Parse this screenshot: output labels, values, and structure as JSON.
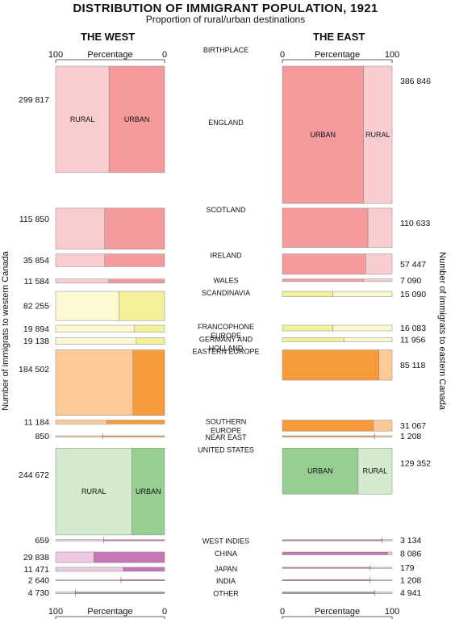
{
  "title": "DISTRIBUTION OF IMMIGRANT POPULATION, 1921",
  "subtitle": "Proportion of rural/urban destinations",
  "west_title": "THE WEST",
  "east_title": "THE EAST",
  "axis_label": "Percentage",
  "west_ticks": [
    "100",
    "0"
  ],
  "east_ticks": [
    "0",
    "100"
  ],
  "west_axis_label": "Number of immigrats to western Canada",
  "east_axis_label": "Number of immigrats to eastern Canada",
  "birthplace_label": "BIRTHPLACE",
  "segment_labels": {
    "rural": "RURAL",
    "urban": "URBAN"
  },
  "colors": {
    "british_urban": "#f4999c",
    "british_rural": "#f9cdd0",
    "scand_urban": "#f5f19a",
    "scand_rural": "#fbf8d2",
    "eastern_urban": "#f79a3c",
    "eastern_rural": "#fdc996",
    "us_urban": "#97cf93",
    "us_rural": "#d3ebcc",
    "asian_urban": "#c874b5",
    "asian_rural": "#ecc8e2",
    "other_urban": "#999999",
    "other_rural": "#d6d6d6"
  },
  "chart_data": {
    "type": "bar",
    "subtype": "variable-width 100% stacked bar (mosaic), two mirrored panels",
    "title": "DISTRIBUTION OF IMMIGRANT POPULATION, 1921",
    "subtitle": "Proportion of rural/urban destinations",
    "xlabel": "Percentage",
    "xlim": [
      0,
      100
    ],
    "west_ylabel": "Number of immigrats to western Canada",
    "east_ylabel": "Number of immigrats to eastern Canada",
    "series": [
      {
        "name": "URBAN"
      },
      {
        "name": "RURAL"
      }
    ],
    "categories": [
      {
        "label": "ENGLAND",
        "group": "british",
        "west": {
          "label": "299 817",
          "count": 299817,
          "urban_pct": 51
        },
        "east": {
          "label": "386 846",
          "count": 386846,
          "urban_pct": 74
        }
      },
      {
        "label": "SCOTLAND",
        "group": "british",
        "west": {
          "label": "115 850",
          "count": 115850,
          "urban_pct": 55
        },
        "east": {
          "label": "110 633",
          "count": 110633,
          "urban_pct": 78
        }
      },
      {
        "label": "IRELAND",
        "group": "british",
        "west": {
          "label": "35 854",
          "count": 35854,
          "urban_pct": 55
        },
        "east": {
          "label": "57 447",
          "count": 57447,
          "urban_pct": 76
        }
      },
      {
        "label": "WALES",
        "group": "british",
        "west": {
          "label": "11 584",
          "count": 11584,
          "urban_pct": 51
        },
        "east": {
          "label": "7 090",
          "count": 7090,
          "urban_pct": 74
        }
      },
      {
        "label": "SCANDINAVIA",
        "group": "scand",
        "west": {
          "label": "82 255",
          "count": 82255,
          "urban_pct": 42
        },
        "east": {
          "label": "15 090",
          "count": 15090,
          "urban_pct": 46
        }
      },
      {
        "label": "FRANCOPHONE EUROPE",
        "lines": [
          "FRANCOPHONE",
          "EUROPE"
        ],
        "group": "scand",
        "west": {
          "label": "19 894",
          "count": 19894,
          "urban_pct": 28
        },
        "east": {
          "label": "16 083",
          "count": 16083,
          "urban_pct": 46
        }
      },
      {
        "label": "GERMANY AND HOLLAND",
        "lines": [
          "GERMANY AND",
          "HOLLAND"
        ],
        "group": "scand",
        "west": {
          "label": "19 138",
          "count": 19138,
          "urban_pct": 26
        },
        "east": {
          "label": "11 956",
          "count": 11956,
          "urban_pct": 56
        }
      },
      {
        "label": "EASTERN EUROPE",
        "group": "eastern",
        "west": {
          "label": "184 502",
          "count": 184502,
          "urban_pct": 29
        },
        "east": {
          "label": "85 118",
          "count": 85118,
          "urban_pct": 88
        }
      },
      {
        "label": "SOUTHERN EUROPE",
        "lines": [
          "SOUTHERN",
          "EUROPE"
        ],
        "group": "eastern",
        "west": {
          "label": "11 184",
          "count": 11184,
          "urban_pct": 53
        },
        "east": {
          "label": "31 067",
          "count": 31067,
          "urban_pct": 83
        }
      },
      {
        "label": "NEAR EAST",
        "group": "eastern",
        "west": {
          "label": "850",
          "count": 850,
          "urban_pct": 57
        },
        "east": {
          "label": "1 208",
          "count": 1208,
          "urban_pct": 84
        }
      },
      {
        "label": "UNITED STATES",
        "group": "us",
        "show_segment_labels": true,
        "west": {
          "label": "244 672",
          "count": 244672,
          "urban_pct": 30
        },
        "east": {
          "label": "129 352",
          "count": 129352,
          "urban_pct": 69
        }
      },
      {
        "label": "WEST INDIES",
        "group": "asian",
        "west": {
          "label": "659",
          "count": 659,
          "urban_pct": 56
        },
        "east": {
          "label": "3 134",
          "count": 3134,
          "urban_pct": 91
        }
      },
      {
        "label": "CHINA",
        "group": "asian",
        "west": {
          "label": "29 838",
          "count": 29838,
          "urban_pct": 65
        },
        "east": {
          "label": "8 086",
          "count": 8086,
          "urban_pct": 96
        }
      },
      {
        "label": "JAPAN",
        "group": "asian",
        "west": {
          "label": "11 471",
          "count": 11471,
          "urban_pct": 38
        },
        "east": {
          "label": "179",
          "count": 179,
          "urban_pct": 80
        }
      },
      {
        "label": "INDIA",
        "group": "asian",
        "west": {
          "label": "2 640",
          "count": 2640,
          "urban_pct": 40
        },
        "east": {
          "label": "1 208",
          "count": 1208,
          "urban_pct": 80
        }
      },
      {
        "label": "OTHER",
        "group": "other",
        "west": {
          "label": "4 730",
          "count": 4730,
          "urban_pct": 82
        },
        "east": {
          "label": "4 941",
          "count": 4941,
          "urban_pct": 84
        }
      }
    ]
  }
}
